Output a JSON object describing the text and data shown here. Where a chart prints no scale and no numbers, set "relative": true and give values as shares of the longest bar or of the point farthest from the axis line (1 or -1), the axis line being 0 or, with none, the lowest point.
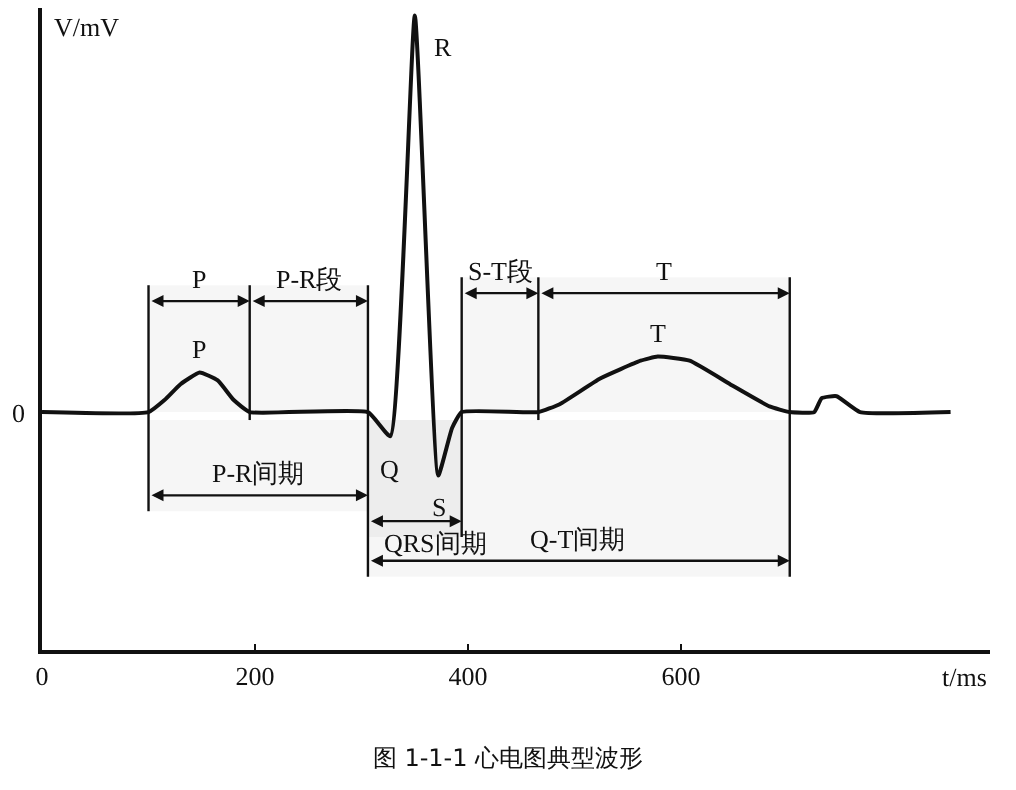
{
  "chart_data": {
    "type": "line",
    "relative": true,
    "title": "图 1-1-1 心电图典型波形",
    "xlabel": "t/ms",
    "ylabel": "V/mV",
    "x": [
      0,
      100,
      115,
      130,
      148,
      165,
      180,
      195,
      306,
      327,
      350,
      372,
      385,
      394,
      466,
      486,
      524,
      562,
      578,
      608,
      646,
      683,
      702,
      725,
      732,
      746,
      768,
      853
    ],
    "series": [
      {
        "color": "#111111",
        "values": [
          0.375,
          0.375,
          0.394,
          0.419,
          0.4375,
          0.425,
          0.394,
          0.375,
          0.375,
          0.337,
          1,
          0.275,
          0.35,
          0.375,
          0.375,
          0.3875,
          0.428,
          0.456,
          0.4625,
          0.456,
          0.419,
          0.384,
          0.375,
          0.375,
          0.397,
          0.4,
          0.375,
          0.375
        ]
      }
    ],
    "xlim": [
      0,
      890
    ],
    "xticks": [
      0,
      200,
      400,
      600
    ],
    "grid": false,
    "marker": "none",
    "line_style": "solid",
    "annotations": [
      "0",
      {
        "text": "P",
        "x": 148,
        "y": 0.4375
      },
      {
        "text": "Q",
        "x": 327,
        "y": 0.337
      },
      {
        "text": "R",
        "x": 350,
        "y": 1
      },
      {
        "text": "S",
        "x": 372,
        "y": 0.275
      },
      {
        "text": "T",
        "x": 578,
        "y": 0.4625
      }
    ],
    "ref_lines": [
      {
        "axis": "x",
        "value": 100
      },
      {
        "axis": "x",
        "value": 195
      },
      {
        "axis": "x",
        "value": 306
      },
      {
        "axis": "x",
        "value": 394
      },
      {
        "axis": "x",
        "value": 466
      },
      {
        "axis": "x",
        "value": 702
      }
    ],
    "bands": [
      {
        "axis": "x",
        "from": 100,
        "to": 195,
        "label": "P"
      },
      {
        "axis": "x",
        "from": 195,
        "to": 306,
        "label": "P-R段"
      },
      {
        "axis": "x",
        "from": 394,
        "to": 466,
        "label": "S-T段"
      },
      {
        "axis": "x",
        "from": 466,
        "to": 702,
        "label": "T"
      },
      {
        "axis": "x",
        "from": 100,
        "to": 306,
        "label": "P-R间期"
      },
      {
        "axis": "x",
        "from": 306,
        "to": 394,
        "label": "QRS间期"
      },
      {
        "axis": "x",
        "from": 306,
        "to": 702,
        "label": "Q-T间期"
      }
    ]
  }
}
